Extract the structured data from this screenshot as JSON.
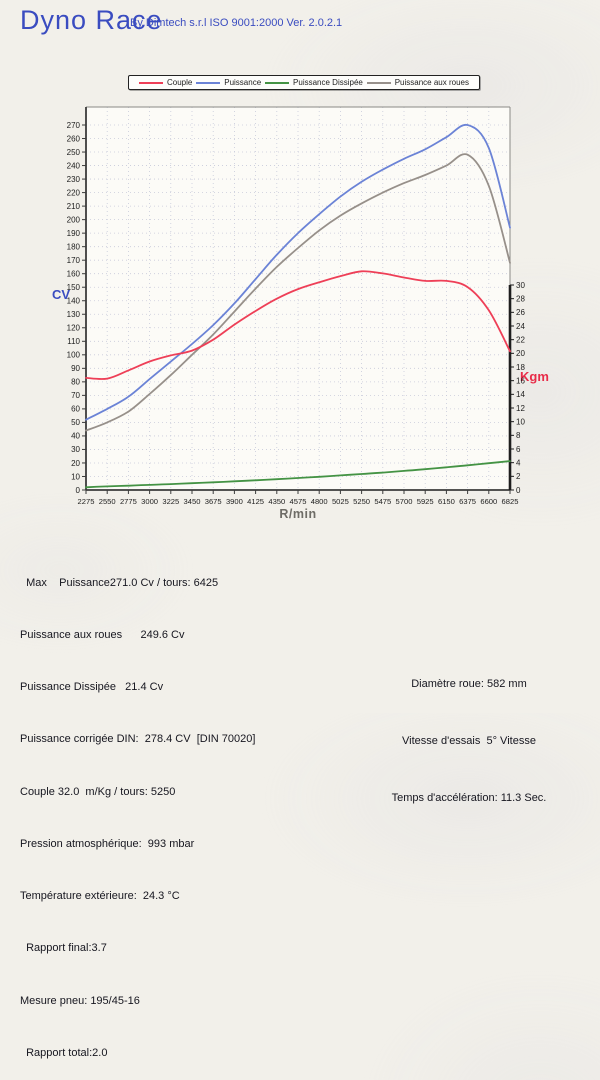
{
  "header": {
    "title": "Dyno Race",
    "subtitle": "By Dimtech s.r.l  ISO 9001:2000  Ver. 2.0.2.1"
  },
  "legend": {
    "items": [
      {
        "label": "Couple"
      },
      {
        "label": "Puissance"
      },
      {
        "label": "Puissance Dissipée"
      },
      {
        "label": "Puissance aux roues"
      }
    ]
  },
  "chart_data": {
    "type": "line",
    "xlabel": "R/min",
    "x_categories": [
      2275,
      2550,
      2775,
      3000,
      3225,
      3450,
      3675,
      3900,
      4125,
      4350,
      4575,
      4800,
      5025,
      5250,
      5475,
      5700,
      5925,
      6150,
      6375,
      6600,
      6825
    ],
    "left_axis": {
      "label": "CV",
      "min": 0,
      "max": 270,
      "step": 10,
      "color": "#3a4cc0"
    },
    "right_axis": {
      "label": "Kgm",
      "min": 0,
      "max": 30,
      "step": 2,
      "color": "#e82b48"
    },
    "grid": "dotted",
    "legend_position": "top",
    "series": [
      {
        "name": "Couple",
        "axis": "right",
        "unit": "Kgm",
        "color": "#ee3f57",
        "values": [
          16.4,
          16.3,
          17.5,
          18.8,
          19.7,
          20.4,
          22.0,
          24.2,
          26.2,
          28.0,
          29.4,
          30.4,
          31.3,
          32.0,
          31.7,
          31.1,
          30.6,
          30.6,
          29.7,
          26.3,
          20.3
        ]
      },
      {
        "name": "Puissance",
        "axis": "left",
        "unit": "Cv",
        "color": "#6b83d6",
        "values": [
          52,
          60,
          69,
          82,
          95,
          108,
          122,
          138,
          156,
          174,
          190,
          204,
          217,
          228,
          237,
          245,
          252,
          261,
          270,
          253,
          194
        ]
      },
      {
        "name": "Puissance Dissipée",
        "axis": "left",
        "unit": "Cv",
        "color": "#449344",
        "values": [
          2.0,
          2.7,
          3.2,
          3.8,
          4.4,
          5.0,
          5.7,
          6.4,
          7.2,
          8.0,
          8.9,
          9.8,
          10.8,
          11.8,
          12.9,
          14.1,
          15.4,
          16.8,
          18.3,
          19.8,
          21.4
        ]
      },
      {
        "name": "Puissance aux roues",
        "axis": "left",
        "unit": "Cv",
        "color": "#97908a",
        "values": [
          44,
          50,
          58,
          71,
          85,
          100,
          115,
          132,
          149,
          165,
          179,
          192,
          203,
          212,
          220,
          227,
          233,
          240,
          248,
          225,
          168
        ]
      }
    ]
  },
  "stats": {
    "left_lines": [
      "  Max    Puissance271.0 Cv / tours: 6425",
      "Puissance aux roues      249.6 Cv",
      "Puissance Dissipée   21.4 Cv",
      "Puissance corrigée DIN:  278.4 CV  [DIN 70020]",
      "Couple 32.0  m/Kg / tours: 5250",
      "Pression atmosphérique:  993 mbar",
      "Température extérieure:  24.3 °C",
      "  Rapport final:3.7",
      "Mesure pneu: 195/45-16",
      "  Rapport total:2.0"
    ],
    "right_lines": [
      "Diamètre roue: 582 mm",
      "Vitesse d'essais  5° Vitesse",
      "Temps d'accélération: 11.3 Sec."
    ]
  }
}
